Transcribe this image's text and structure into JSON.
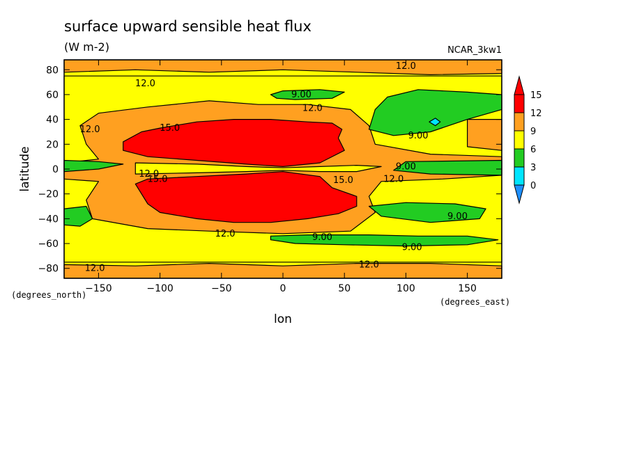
{
  "chart_data": {
    "type": "contour",
    "title": "surface upward sensible heat flux",
    "subtitle": "(W m-2)",
    "model_label": "NCAR_3kw1",
    "xlabel": "lon",
    "ylabel": "latitude",
    "x_units": "(degrees_east)",
    "y_units": "(degrees_north)",
    "xlim": [
      -178,
      178
    ],
    "ylim": [
      -88,
      88
    ],
    "x_ticks": [
      -150,
      -100,
      -50,
      0,
      50,
      100,
      150
    ],
    "x_tick_labels": [
      "-150",
      "-100",
      "-50",
      "0",
      "50",
      "100",
      "150"
    ],
    "y_ticks": [
      -80,
      -60,
      -40,
      -20,
      0,
      20,
      40,
      60,
      80
    ],
    "y_tick_labels": [
      "-80",
      "-60",
      "-40",
      "-20",
      "0",
      "20",
      "40",
      "60",
      "80"
    ],
    "colorbar": {
      "levels": [
        0,
        3,
        6,
        9,
        12,
        15
      ],
      "labels": [
        "0",
        "3",
        "6",
        "9",
        "12",
        "15"
      ],
      "colors": [
        "#1e90ff",
        "#00e5ff",
        "#22cc22",
        "#ffff00",
        "#ffa020",
        "#ff0000"
      ],
      "extend": "both"
    },
    "regions": [
      {
        "level": "9-12",
        "color": "#ffff00",
        "points": [
          [
            -178,
            75
          ],
          [
            178,
            75
          ],
          [
            178,
            -75
          ],
          [
            -178,
            -75
          ]
        ]
      },
      {
        "level": "12-15",
        "color": "#ffa020",
        "points": [
          [
            -178,
            88
          ],
          [
            178,
            88
          ],
          [
            178,
            77
          ],
          [
            120,
            76
          ],
          [
            60,
            78
          ],
          [
            0,
            80
          ],
          [
            -60,
            78
          ],
          [
            -120,
            80
          ],
          [
            -178,
            78
          ]
        ]
      },
      {
        "level": "12-15",
        "color": "#ffa020",
        "points": [
          [
            -178,
            -88
          ],
          [
            178,
            -88
          ],
          [
            178,
            -78
          ],
          [
            120,
            -76
          ],
          [
            60,
            -76
          ],
          [
            0,
            -78
          ],
          [
            -60,
            -76
          ],
          [
            -120,
            -78
          ],
          [
            -178,
            -77
          ]
        ]
      },
      {
        "level": "12-15",
        "color": "#ffa020",
        "points": [
          [
            -165,
            35
          ],
          [
            -150,
            45
          ],
          [
            -110,
            50
          ],
          [
            -60,
            55
          ],
          [
            -20,
            52
          ],
          [
            20,
            52
          ],
          [
            55,
            48
          ],
          [
            70,
            35
          ],
          [
            75,
            20
          ],
          [
            120,
            12
          ],
          [
            178,
            10
          ],
          [
            178,
            -5
          ],
          [
            130,
            -8
          ],
          [
            80,
            -10
          ],
          [
            70,
            -22
          ],
          [
            75,
            -35
          ],
          [
            55,
            -50
          ],
          [
            0,
            -52
          ],
          [
            -60,
            -50
          ],
          [
            -110,
            -48
          ],
          [
            -155,
            -40
          ],
          [
            -160,
            -25
          ],
          [
            -150,
            -10
          ],
          [
            -178,
            -8
          ],
          [
            -178,
            5
          ],
          [
            -150,
            8
          ],
          [
            -160,
            20
          ]
        ]
      },
      {
        "level": "12-15",
        "color": "#ffa020",
        "points": [
          [
            150,
            40
          ],
          [
            178,
            40
          ],
          [
            178,
            15
          ],
          [
            150,
            18
          ]
        ]
      },
      {
        "level": "9-12",
        "color": "#ffff00",
        "points": [
          [
            -120,
            5
          ],
          [
            -70,
            4
          ],
          [
            -30,
            2
          ],
          [
            0,
            1
          ],
          [
            30,
            2
          ],
          [
            60,
            3
          ],
          [
            80,
            2
          ],
          [
            60,
            -2
          ],
          [
            30,
            -2
          ],
          [
            0,
            -1
          ],
          [
            -30,
            -2
          ],
          [
            -70,
            -3
          ],
          [
            -120,
            -4
          ]
        ]
      },
      {
        "level": "15+",
        "color": "#ff0000",
        "points": [
          [
            -130,
            22
          ],
          [
            -115,
            30
          ],
          [
            -100,
            33
          ],
          [
            -70,
            38
          ],
          [
            -40,
            40
          ],
          [
            -10,
            40
          ],
          [
            20,
            38
          ],
          [
            40,
            37
          ],
          [
            48,
            32
          ],
          [
            45,
            25
          ],
          [
            50,
            15
          ],
          [
            30,
            5
          ],
          [
            0,
            2
          ],
          [
            -30,
            4
          ],
          [
            -70,
            7
          ],
          [
            -110,
            10
          ],
          [
            -130,
            15
          ]
        ]
      },
      {
        "level": "15+",
        "color": "#ff0000",
        "points": [
          [
            -120,
            -12
          ],
          [
            -110,
            -28
          ],
          [
            -100,
            -35
          ],
          [
            -70,
            -40
          ],
          [
            -40,
            -43
          ],
          [
            -10,
            -43
          ],
          [
            20,
            -40
          ],
          [
            45,
            -36
          ],
          [
            60,
            -30
          ],
          [
            60,
            -22
          ],
          [
            40,
            -15
          ],
          [
            30,
            -6
          ],
          [
            0,
            -2
          ],
          [
            -30,
            -4
          ],
          [
            -70,
            -6
          ],
          [
            -110,
            -8
          ]
        ]
      },
      {
        "level": "6-9",
        "color": "#22cc22",
        "points": [
          [
            -178,
            7
          ],
          [
            -150,
            6
          ],
          [
            -130,
            4
          ],
          [
            -150,
            0
          ],
          [
            -178,
            -2
          ]
        ]
      },
      {
        "level": "6-9",
        "color": "#22cc22",
        "points": [
          [
            100,
            6
          ],
          [
            178,
            7
          ],
          [
            178,
            -5
          ],
          [
            120,
            -4
          ],
          [
            90,
            -1
          ]
        ]
      },
      {
        "level": "6-9",
        "color": "#22cc22",
        "points": [
          [
            -178,
            -32
          ],
          [
            -160,
            -30
          ],
          [
            -155,
            -40
          ],
          [
            -165,
            -46
          ],
          [
            -178,
            -45
          ]
        ]
      },
      {
        "level": "6-9",
        "color": "#22cc22",
        "points": [
          [
            -10,
            60
          ],
          [
            0,
            63
          ],
          [
            30,
            64
          ],
          [
            50,
            62
          ],
          [
            40,
            57
          ],
          [
            10,
            56
          ],
          [
            -5,
            57
          ]
        ]
      },
      {
        "level": "6-9",
        "color": "#22cc22",
        "points": [
          [
            75,
            48
          ],
          [
            85,
            58
          ],
          [
            110,
            64
          ],
          [
            150,
            62
          ],
          [
            178,
            60
          ],
          [
            178,
            48
          ],
          [
            150,
            40
          ],
          [
            120,
            30
          ],
          [
            90,
            27
          ],
          [
            70,
            32
          ]
        ]
      },
      {
        "level": "6-9",
        "color": "#22cc22",
        "points": [
          [
            70,
            -30
          ],
          [
            100,
            -27
          ],
          [
            140,
            -28
          ],
          [
            165,
            -32
          ],
          [
            160,
            -40
          ],
          [
            120,
            -43
          ],
          [
            80,
            -38
          ]
        ]
      },
      {
        "level": "6-9",
        "color": "#22cc22",
        "points": [
          [
            -10,
            -54
          ],
          [
            20,
            -53
          ],
          [
            70,
            -53
          ],
          [
            110,
            -54
          ],
          [
            150,
            -54
          ],
          [
            175,
            -57
          ],
          [
            150,
            -61
          ],
          [
            100,
            -62
          ],
          [
            50,
            -61
          ],
          [
            10,
            -60
          ],
          [
            -10,
            -57
          ]
        ]
      },
      {
        "level": "3-6",
        "color": "#00e5ff",
        "points": [
          [
            119,
            38
          ],
          [
            124,
            41
          ],
          [
            128,
            38
          ],
          [
            124,
            35
          ]
        ]
      }
    ],
    "contour_labels": [
      {
        "text": "12.0",
        "x": 100,
        "y": 83
      },
      {
        "text": "12.0",
        "x": -112,
        "y": 69
      },
      {
        "text": "9.00",
        "x": 15,
        "y": 60
      },
      {
        "text": "12.0",
        "x": 24,
        "y": 49
      },
      {
        "text": "12.0",
        "x": -157,
        "y": 32
      },
      {
        "text": "15.0",
        "x": -92,
        "y": 33
      },
      {
        "text": "9.00",
        "x": 110,
        "y": 27
      },
      {
        "text": "9.00",
        "x": 100,
        "y": 2
      },
      {
        "text": "12.0",
        "x": -109,
        "y": -4
      },
      {
        "text": "15.0",
        "x": -102,
        "y": -8
      },
      {
        "text": "15.0",
        "x": 49,
        "y": -9
      },
      {
        "text": "12.0",
        "x": 90,
        "y": -8
      },
      {
        "text": "9.00",
        "x": 142,
        "y": -38
      },
      {
        "text": "12.0",
        "x": -47,
        "y": -52
      },
      {
        "text": "9.00",
        "x": 32,
        "y": -55
      },
      {
        "text": "9.00",
        "x": 105,
        "y": -63
      },
      {
        "text": "12.0",
        "x": -153,
        "y": -80
      },
      {
        "text": "12.0",
        "x": 70,
        "y": -77
      }
    ]
  }
}
